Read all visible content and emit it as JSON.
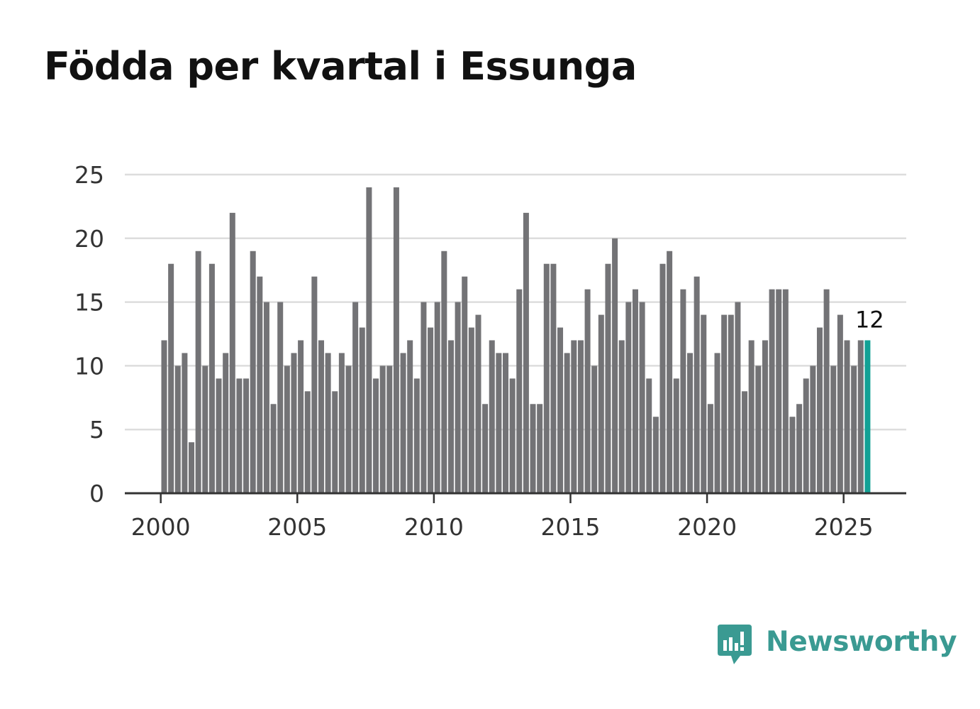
{
  "chart_data": {
    "type": "bar",
    "title": "Födda per kvartal i Essunga",
    "xlabel": "",
    "ylabel": "",
    "ylim": [
      0,
      25
    ],
    "y_ticks": [
      "0",
      "5",
      "10",
      "15",
      "20",
      "25"
    ],
    "x_ticks": [
      "2000",
      "2005",
      "2010",
      "2015",
      "2020",
      "2025"
    ],
    "x_start": "2000 Q1",
    "x_end": "2025 Q4",
    "grid": true,
    "values": [
      12,
      18,
      10,
      11,
      4,
      19,
      10,
      18,
      9,
      11,
      22,
      9,
      9,
      19,
      17,
      15,
      7,
      15,
      10,
      11,
      12,
      8,
      17,
      12,
      11,
      8,
      11,
      10,
      15,
      13,
      24,
      9,
      10,
      10,
      24,
      11,
      12,
      9,
      15,
      13,
      15,
      19,
      12,
      15,
      17,
      13,
      14,
      7,
      12,
      11,
      11,
      9,
      16,
      22,
      7,
      7,
      18,
      18,
      13,
      11,
      12,
      12,
      16,
      10,
      14,
      18,
      20,
      12,
      15,
      16,
      15,
      9,
      6,
      18,
      19,
      9,
      16,
      11,
      17,
      14,
      7,
      11,
      14,
      14,
      15,
      8,
      12,
      10,
      12,
      16,
      16,
      16,
      6,
      7,
      9,
      10,
      13,
      16,
      10,
      14,
      12,
      10,
      12,
      12
    ],
    "highlight_label": "12",
    "colors": {
      "bar": "#737376",
      "highlight": "#12a195",
      "grid": "#dddddd",
      "axis": "#333333",
      "tick_text": "#333333"
    }
  },
  "branding": {
    "name": "Newsworthy",
    "icon": "newsworthy-logo-icon",
    "color": "#3a9a92"
  }
}
